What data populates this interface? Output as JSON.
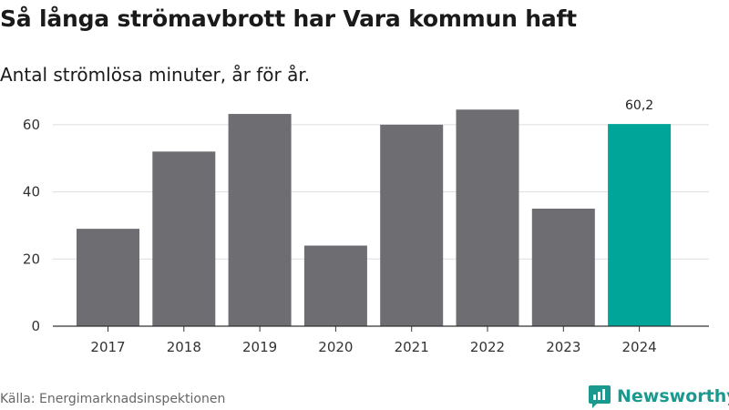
{
  "title": "Så långa strömavbrott har Vara kommun haft",
  "subtitle": "Antal strömlösa minuter, år för år.",
  "source": "Källa: Energimarknadsinspektionen",
  "brand": {
    "name": "Newsworthy",
    "icon": "newsworthy-logo-icon",
    "color": "#1a9a8e"
  },
  "chart_data": {
    "type": "bar",
    "categories": [
      "2017",
      "2018",
      "2019",
      "2020",
      "2021",
      "2022",
      "2023",
      "2024"
    ],
    "values": [
      29,
      52,
      63.2,
      24,
      60,
      64.5,
      35,
      60.2
    ],
    "highlight_index": 7,
    "data_labels": {
      "7": "60,2"
    },
    "ylim": [
      0,
      70
    ],
    "yticks": [
      0,
      20,
      40,
      60
    ],
    "ytick_labels": [
      "0",
      "20",
      "40",
      "60"
    ],
    "grid": true,
    "colors": {
      "bar": "#6e6d72",
      "highlight": "#00a59a",
      "grid": "#dddddd",
      "axis": "#333333"
    }
  }
}
